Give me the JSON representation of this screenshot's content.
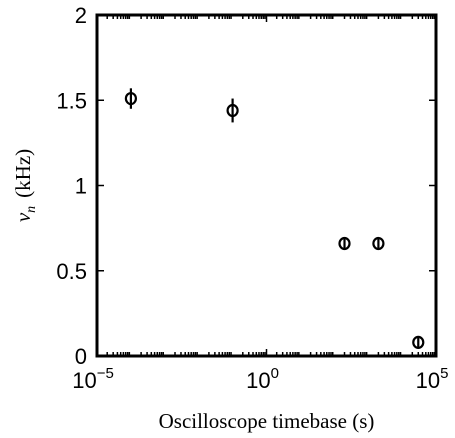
{
  "chart_data": {
    "type": "scatter",
    "xlabel": "Oscilloscope timebase (s)",
    "ylabel_symbol": "ν",
    "ylabel_subscript": "n",
    "ylabel_unit": "(kHz)",
    "xscale": "log",
    "xlim": [
      1e-05,
      100000
    ],
    "ylim": [
      0,
      2
    ],
    "x_ticks": [
      {
        "base": "10",
        "exp": "−5",
        "value": 1e-05
      },
      {
        "base": "10",
        "exp": "0",
        "value": 1
      },
      {
        "base": "10",
        "exp": "5",
        "value": 100000
      }
    ],
    "y_ticks": [
      {
        "label": "0",
        "value": 0
      },
      {
        "label": "0.5",
        "value": 0.5
      },
      {
        "label": "1",
        "value": 1
      },
      {
        "label": "1.5",
        "value": 1.5
      },
      {
        "label": "2",
        "value": 2
      }
    ],
    "grid": false,
    "marker": "circle-open",
    "points": [
      {
        "x": 0.0001,
        "y": 1.51,
        "err": 0.06
      },
      {
        "x": 0.1,
        "y": 1.44,
        "err": 0.07
      },
      {
        "x": 200,
        "y": 0.66,
        "err": 0.0
      },
      {
        "x": 2000,
        "y": 0.66,
        "err": 0.0
      },
      {
        "x": 30000,
        "y": 0.08,
        "err": 0.0
      }
    ]
  }
}
